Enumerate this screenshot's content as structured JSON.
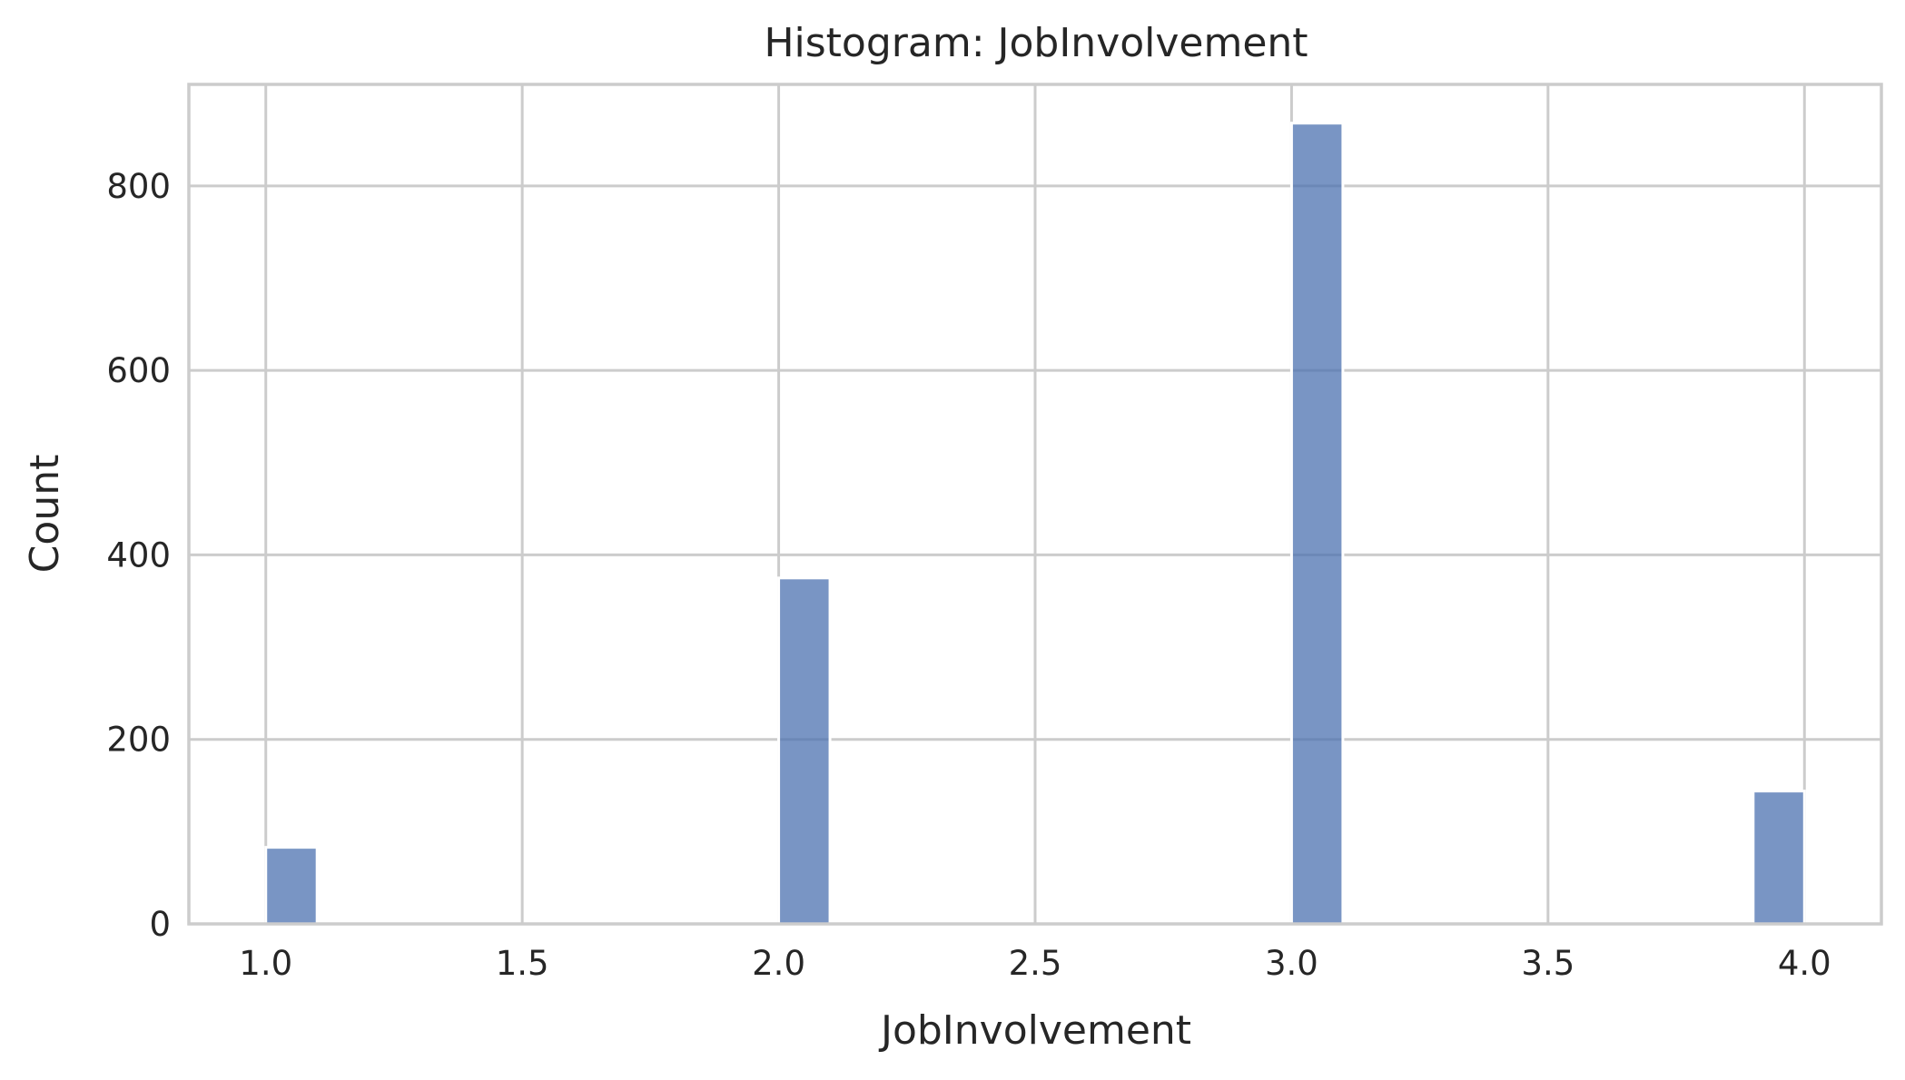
{
  "chart_data": {
    "type": "bar",
    "title": "Histogram: JobInvolvement",
    "xlabel": "JobInvolvement",
    "ylabel": "Count",
    "xlim": [
      0.85,
      4.15
    ],
    "ylim": [
      0,
      910
    ],
    "x_ticks": [
      1.0,
      1.5,
      2.0,
      2.5,
      3.0,
      3.5,
      4.0
    ],
    "x_tick_labels": [
      "1.0",
      "1.5",
      "2.0",
      "2.5",
      "3.0",
      "3.5",
      "4.0"
    ],
    "y_ticks": [
      0,
      200,
      400,
      600,
      800
    ],
    "y_tick_labels": [
      "0",
      "200",
      "400",
      "600",
      "800"
    ],
    "bin_width": 0.1,
    "bins": [
      {
        "x_start": 1.0,
        "x_end": 1.1,
        "count": 83
      },
      {
        "x_start": 2.0,
        "x_end": 2.1,
        "count": 375
      },
      {
        "x_start": 3.0,
        "x_end": 3.1,
        "count": 868
      },
      {
        "x_start": 3.9,
        "x_end": 4.0,
        "count": 144
      }
    ],
    "grid": true,
    "bar_color": "#4c72b0",
    "bar_opacity": 0.75,
    "grid_color": "#cccccc"
  }
}
